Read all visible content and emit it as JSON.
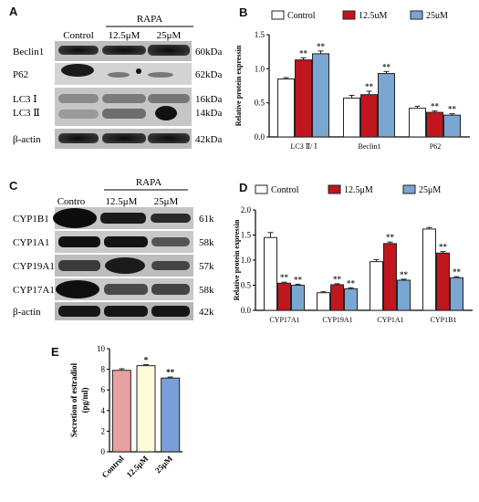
{
  "panels": {
    "a": "A",
    "b": "B",
    "c": "C",
    "d": "D",
    "e": "E"
  },
  "blot_a": {
    "col_control": "Control",
    "group": "RAPA",
    "col_low": "12.5μM",
    "col_high": "25μM",
    "rows": [
      {
        "name": "Beclin1",
        "size": "60kDa"
      },
      {
        "name": "P62",
        "size": "62kDa"
      },
      {
        "name": "LC3 Ⅰ",
        "size": "16kDa"
      },
      {
        "name": "LC3 Ⅱ",
        "size": "14kDa"
      },
      {
        "name": "β-actin",
        "size": "42kDa"
      }
    ]
  },
  "blot_c": {
    "col_control": "Contro",
    "group": "RAPA",
    "col_low": "12.5μM",
    "col_high": "25μM",
    "rows": [
      {
        "name": "CYP1B1",
        "size": "61k"
      },
      {
        "name": "CYP1A1",
        "size": "58k"
      },
      {
        "name": "CYP19A1",
        "size": "57k"
      },
      {
        "name": "CYP17A1",
        "size": "58k"
      },
      {
        "name": "β-actin",
        "size": "42k"
      }
    ]
  },
  "chart_data": [
    {
      "id": "B",
      "type": "bar",
      "ylabel": "Relative protein expressin",
      "ylim": [
        0,
        1.5
      ],
      "yticks": [
        "0.0",
        "0.5",
        "1.0",
        "1.5"
      ],
      "categories": [
        "LC3 Ⅱ/ Ⅰ",
        "Beclin1",
        "P62"
      ],
      "series": [
        {
          "name": "Control",
          "color": "#ffffff",
          "values": [
            0.85,
            0.57,
            0.42
          ],
          "errors": [
            0.02,
            0.04,
            0.03
          ],
          "marks": [
            "",
            "",
            ""
          ]
        },
        {
          "name": "12.5uM",
          "color": "#c0161e",
          "values": [
            1.13,
            0.62,
            0.36
          ],
          "errors": [
            0.03,
            0.05,
            0.02
          ],
          "marks": [
            "**",
            "**",
            "**"
          ]
        },
        {
          "name": "25uM",
          "color": "#7aa6d2",
          "values": [
            1.22,
            0.93,
            0.32
          ],
          "errors": [
            0.04,
            0.03,
            0.02
          ],
          "marks": [
            "**",
            "**",
            "**"
          ]
        }
      ],
      "legend": "top"
    },
    {
      "id": "D",
      "type": "bar",
      "ylabel": "Relative protein expressin",
      "ylim": [
        0,
        2.0
      ],
      "yticks": [
        "0.0",
        "0.5",
        "1.0",
        "1.5",
        "2.0"
      ],
      "categories": [
        "CYP17A1",
        "CYP19A1",
        "CYP1A1",
        "CYP1B1"
      ],
      "series": [
        {
          "name": "Control",
          "color": "#ffffff",
          "values": [
            1.45,
            0.35,
            0.97,
            1.62
          ],
          "errors": [
            0.1,
            0.02,
            0.04,
            0.03
          ],
          "marks": [
            "",
            "",
            "",
            ""
          ]
        },
        {
          "name": "12.5μM",
          "color": "#c0161e",
          "values": [
            0.54,
            0.51,
            1.33,
            1.14
          ],
          "errors": [
            0.02,
            0.02,
            0.03,
            0.03
          ],
          "marks": [
            "**",
            "**",
            "**",
            "**"
          ]
        },
        {
          "name": "25μM",
          "color": "#7aa6d2",
          "values": [
            0.5,
            0.43,
            0.6,
            0.65
          ],
          "errors": [
            0.02,
            0.02,
            0.02,
            0.02
          ],
          "marks": [
            "**",
            "**",
            "**",
            "**"
          ]
        }
      ],
      "legend": "top"
    },
    {
      "id": "E",
      "type": "bar",
      "ylabel": "Secretion of estradiol\n(pg/ml)",
      "ylim": [
        0,
        10
      ],
      "yticks": [
        "0",
        "2",
        "4",
        "6",
        "8",
        "10"
      ],
      "categories": [
        "Control",
        "12.5μM",
        "25μM"
      ],
      "colors": [
        "#e8a0a0",
        "#fdfbd8",
        "#7b9fd8"
      ],
      "values": [
        7.9,
        8.35,
        7.15
      ],
      "errors": [
        0.15,
        0.1,
        0.1
      ],
      "marks": [
        "",
        "*",
        "**"
      ]
    }
  ]
}
